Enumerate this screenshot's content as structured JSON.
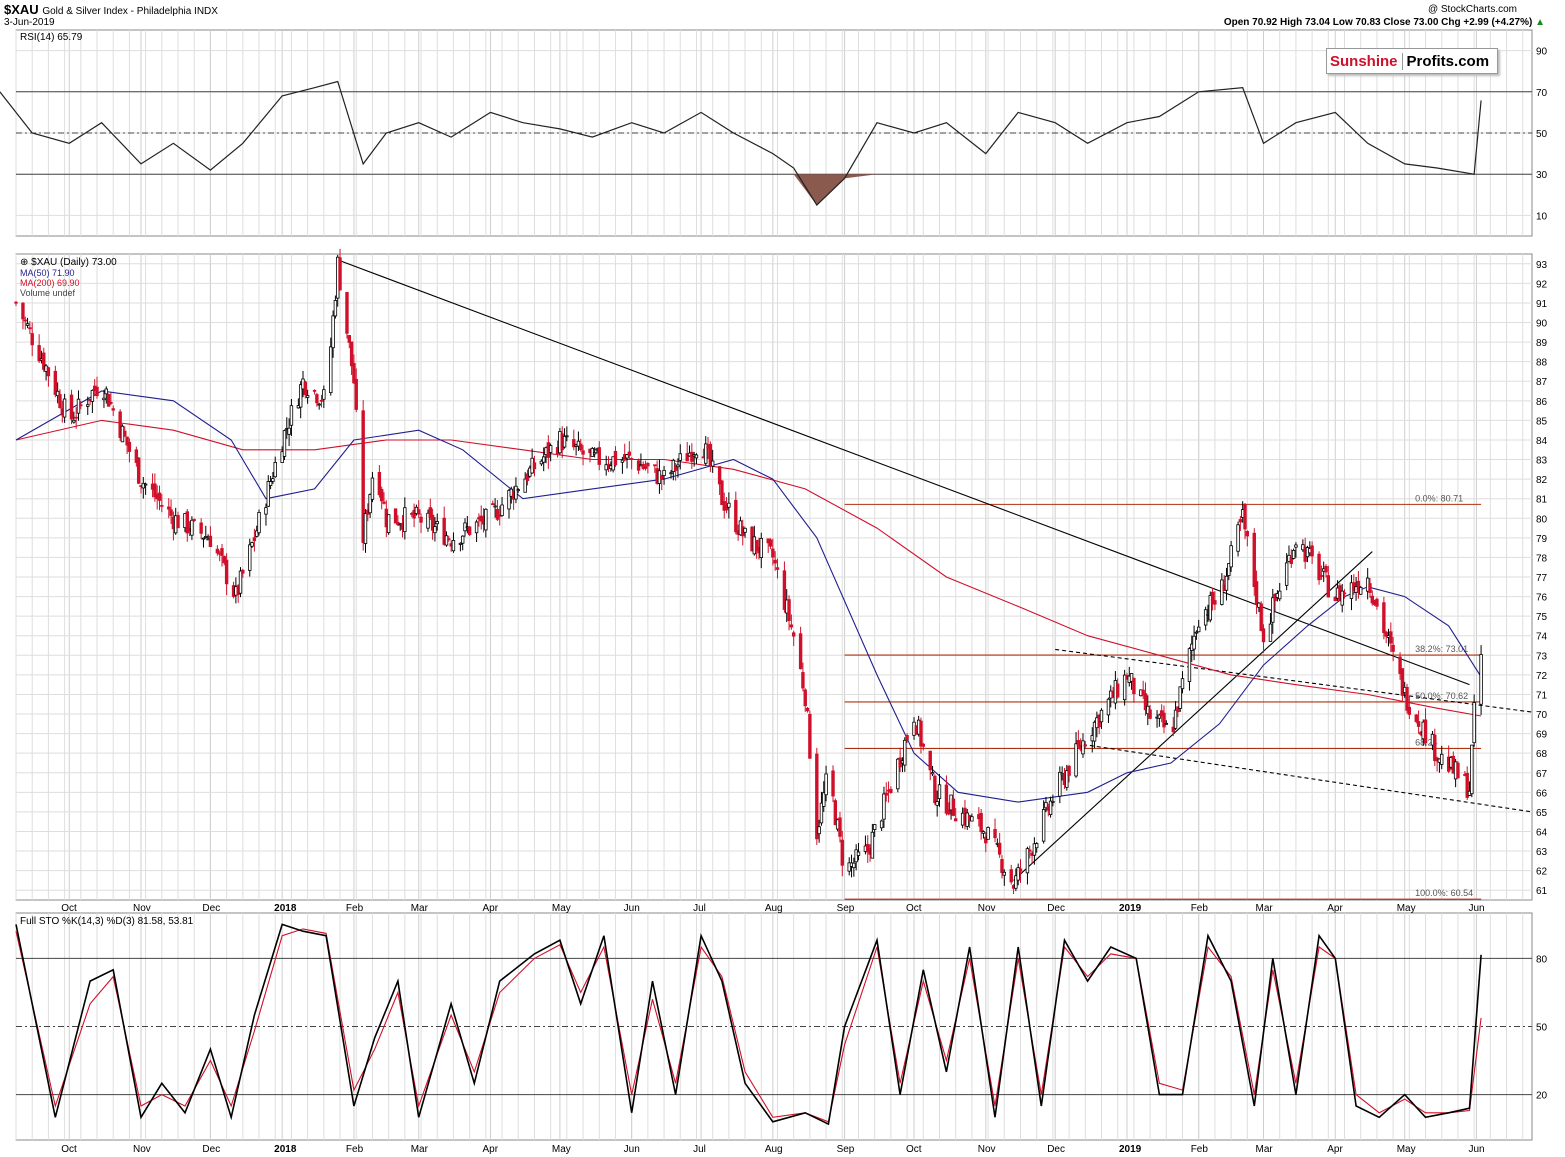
{
  "header": {
    "symbol": "$XAU",
    "name": "Gold & Silver Index - Philadelphia  INDX",
    "date": "3-Jun-2019",
    "quote": "Open 70.92  High 73.04  Low 70.83  Close 73.00  Chg +2.99 (+4.27%)",
    "quote_arrow": "▲",
    "copyright": "@ StockCharts.com"
  },
  "logo": {
    "part1": "Sunshine",
    "part2": "Profits.com"
  },
  "colors": {
    "up": "#000000",
    "down": "#d0102a",
    "ma50": "#1f1f8f",
    "ma200": "#d0102a",
    "fib": "#b03010",
    "rsi_fill": "#8b5a4f",
    "grid": "#dedede",
    "sto_k": "#000000",
    "sto_d": "#d0102a"
  },
  "chart_data": [
    {
      "type": "line",
      "panel": "rsi",
      "legend": "RSI(14) 65.79",
      "yticks": [
        90,
        70,
        50,
        30,
        10
      ],
      "ylim": [
        0,
        100
      ],
      "reference_lines": [
        70,
        50,
        30
      ],
      "x": [
        "2017-09-01",
        "2017-09-15",
        "2017-10-01",
        "2017-10-15",
        "2017-11-01",
        "2017-11-15",
        "2017-12-01",
        "2017-12-15",
        "2018-01-01",
        "2018-01-15",
        "2018-01-25",
        "2018-02-05",
        "2018-02-15",
        "2018-03-01",
        "2018-03-15",
        "2018-04-01",
        "2018-04-15",
        "2018-05-01",
        "2018-05-15",
        "2018-06-01",
        "2018-06-15",
        "2018-07-01",
        "2018-07-15",
        "2018-08-01",
        "2018-08-10",
        "2018-08-20",
        "2018-09-01",
        "2018-09-15",
        "2018-10-01",
        "2018-10-15",
        "2018-11-01",
        "2018-11-15",
        "2018-12-01",
        "2018-12-15",
        "2019-01-01",
        "2019-01-15",
        "2019-02-01",
        "2019-02-20",
        "2019-03-01",
        "2019-03-15",
        "2019-04-01",
        "2019-04-15",
        "2019-05-01",
        "2019-05-15",
        "2019-05-31",
        "2019-06-03"
      ],
      "values": [
        70,
        50,
        45,
        55,
        35,
        45,
        32,
        45,
        68,
        72,
        75,
        35,
        50,
        55,
        48,
        60,
        55,
        52,
        48,
        55,
        50,
        60,
        50,
        40,
        33,
        15,
        28,
        55,
        50,
        55,
        40,
        60,
        55,
        45,
        55,
        58,
        70,
        72,
        45,
        55,
        60,
        45,
        35,
        33,
        30,
        65.79
      ]
    },
    {
      "type": "line",
      "panel": "price",
      "legend": [
        "$XAU (Daily) 73.00",
        "MA(50) 71.90",
        "MA(200) 69.90",
        "Volume undef"
      ],
      "ylim": [
        60.5,
        93.5
      ],
      "yticks": [
        93,
        92,
        91,
        90,
        89,
        88,
        87,
        86,
        85,
        84,
        83,
        82,
        81,
        80,
        79,
        78,
        77,
        76,
        75,
        74,
        73,
        72,
        71,
        70,
        69,
        68,
        67,
        66,
        65,
        64,
        63,
        62,
        61
      ],
      "x_labels": [
        "Oct",
        "Nov",
        "Dec",
        "2018",
        "Feb",
        "Mar",
        "Apr",
        "May",
        "Jun",
        "Jul",
        "Aug",
        "Sep",
        "Oct",
        "Nov",
        "Dec",
        "2019",
        "Feb",
        "Mar",
        "Apr",
        "May",
        "Jun"
      ],
      "x_label_dates": [
        "2017-10-01",
        "2017-11-01",
        "2017-12-01",
        "2018-01-01",
        "2018-02-01",
        "2018-03-01",
        "2018-04-01",
        "2018-05-01",
        "2018-06-01",
        "2018-07-01",
        "2018-08-01",
        "2018-09-01",
        "2018-10-01",
        "2018-11-01",
        "2018-12-01",
        "2019-01-01",
        "2019-02-01",
        "2019-03-01",
        "2019-04-01",
        "2019-05-01",
        "2019-06-01"
      ],
      "x_range": [
        "2017-09-08",
        "2019-06-25"
      ],
      "close_path": {
        "x": [
          "2017-09-08",
          "2017-09-20",
          "2017-10-01",
          "2017-10-15",
          "2017-11-01",
          "2017-11-15",
          "2017-12-01",
          "2017-12-12",
          "2017-12-20",
          "2018-01-01",
          "2018-01-10",
          "2018-01-20",
          "2018-01-25",
          "2018-02-01",
          "2018-02-05",
          "2018-02-10",
          "2018-02-15",
          "2018-03-01",
          "2018-03-15",
          "2018-04-01",
          "2018-04-15",
          "2018-05-01",
          "2018-05-15",
          "2018-06-01",
          "2018-06-15",
          "2018-07-01",
          "2018-07-10",
          "2018-07-20",
          "2018-08-01",
          "2018-08-10",
          "2018-08-15",
          "2018-08-20",
          "2018-08-25",
          "2018-09-01",
          "2018-09-11",
          "2018-09-20",
          "2018-10-01",
          "2018-10-10",
          "2018-10-20",
          "2018-11-01",
          "2018-11-13",
          "2018-11-20",
          "2018-12-01",
          "2018-12-15",
          "2019-01-01",
          "2019-01-10",
          "2019-01-20",
          "2019-02-01",
          "2019-02-10",
          "2019-02-20",
          "2019-03-01",
          "2019-03-15",
          "2019-04-01",
          "2019-04-15",
          "2019-05-01",
          "2019-05-15",
          "2019-05-29",
          "2019-05-31",
          "2019-06-03"
        ],
        "values": [
          91,
          88,
          85,
          87,
          82,
          80,
          79,
          76,
          79,
          84,
          87,
          86,
          93,
          87,
          79,
          83,
          80,
          80,
          79,
          80,
          82,
          84,
          83,
          83,
          82,
          84,
          81,
          79,
          78,
          74,
          71,
          64,
          67,
          62,
          63,
          66,
          70,
          66,
          65,
          64,
          61.3,
          63,
          66,
          69,
          72,
          70,
          69,
          75,
          76,
          80,
          74,
          79,
          76,
          77,
          71,
          68,
          66.2,
          70,
          73.0
        ]
      },
      "ma50": {
        "x": [
          "2017-09-08",
          "2017-10-15",
          "2017-11-15",
          "2017-12-10",
          "2017-12-25",
          "2018-01-15",
          "2018-02-01",
          "2018-03-01",
          "2018-03-20",
          "2018-04-15",
          "2018-05-15",
          "2018-06-15",
          "2018-07-15",
          "2018-08-01",
          "2018-08-20",
          "2018-09-15",
          "2018-10-01",
          "2018-10-20",
          "2018-11-15",
          "2018-12-15",
          "2019-01-01",
          "2019-01-20",
          "2019-02-10",
          "2019-03-01",
          "2019-03-20",
          "2019-04-05",
          "2019-04-15",
          "2019-05-01",
          "2019-05-20",
          "2019-06-03"
        ],
        "values": [
          84,
          86.5,
          86,
          84,
          81,
          81.5,
          84,
          84.5,
          83.5,
          81,
          81.5,
          82,
          83,
          82,
          79,
          72,
          68,
          66,
          65.5,
          66,
          67,
          67.5,
          69.5,
          72.5,
          74.5,
          76,
          76.5,
          76,
          74.5,
          71.9
        ]
      },
      "ma200": {
        "x": [
          "2017-09-08",
          "2017-10-15",
          "2017-11-15",
          "2017-12-15",
          "2018-01-15",
          "2018-02-15",
          "2018-03-15",
          "2018-04-15",
          "2018-05-15",
          "2018-06-15",
          "2018-07-15",
          "2018-08-15",
          "2018-09-15",
          "2018-10-15",
          "2018-11-15",
          "2018-12-15",
          "2019-01-15",
          "2019-02-15",
          "2019-03-15",
          "2019-04-15",
          "2019-05-15",
          "2019-06-03"
        ],
        "values": [
          84,
          85,
          84.5,
          83.5,
          83.5,
          84,
          84,
          83.5,
          83,
          83,
          82.5,
          81.5,
          79.5,
          77,
          75.5,
          74,
          73,
          72,
          71.5,
          71,
          70.3,
          69.9
        ]
      },
      "trendlines": [
        {
          "style": "solid",
          "x": [
            "2018-01-25",
            "2019-05-29"
          ],
          "y": [
            93.2,
            71.5
          ]
        },
        {
          "style": "solid",
          "x": [
            "2018-11-13",
            "2019-04-17"
          ],
          "y": [
            61.5,
            78.3
          ]
        },
        {
          "style": "dashed",
          "x": [
            "2018-12-01",
            "2019-06-25"
          ],
          "y": [
            73.3,
            70.1
          ]
        },
        {
          "style": "dashed",
          "x": [
            "2018-12-10",
            "2019-06-25"
          ],
          "y": [
            68.5,
            65.0
          ]
        }
      ],
      "fib_levels": [
        {
          "label": "0.0%: 80.71",
          "value": 80.71
        },
        {
          "label": "38.2%: 73.01",
          "value": 73.01
        },
        {
          "label": "50.0%: 70.62",
          "value": 70.62
        },
        {
          "label": "68.24",
          "value": 68.24
        },
        {
          "label": "100.0%: 60.54",
          "value": 60.54
        }
      ],
      "fib_range": [
        "2018-09-01",
        "2019-06-03"
      ]
    },
    {
      "type": "line",
      "panel": "stochastic",
      "legend": "Full STO %K(14,3) %D(3) 81.58, 53.81",
      "legend_d_value": "53.81",
      "yticks": [
        80,
        50,
        20
      ],
      "ylim": [
        0,
        100
      ],
      "reference_lines": [
        80,
        50,
        20
      ],
      "x": [
        "2017-09-08",
        "2017-09-25",
        "2017-10-10",
        "2017-10-20",
        "2017-11-01",
        "2017-11-10",
        "2017-11-20",
        "2017-12-01",
        "2017-12-10",
        "2017-12-20",
        "2018-01-01",
        "2018-01-10",
        "2018-01-20",
        "2018-02-01",
        "2018-02-10",
        "2018-02-20",
        "2018-03-01",
        "2018-03-15",
        "2018-03-25",
        "2018-04-05",
        "2018-04-20",
        "2018-05-01",
        "2018-05-10",
        "2018-05-20",
        "2018-06-01",
        "2018-06-10",
        "2018-06-20",
        "2018-07-01",
        "2018-07-10",
        "2018-07-20",
        "2018-08-01",
        "2018-08-15",
        "2018-08-25",
        "2018-09-01",
        "2018-09-15",
        "2018-09-25",
        "2018-10-05",
        "2018-10-15",
        "2018-10-25",
        "2018-11-05",
        "2018-11-15",
        "2018-11-25",
        "2018-12-05",
        "2018-12-15",
        "2018-12-25",
        "2019-01-05",
        "2019-01-15",
        "2019-01-25",
        "2019-02-05",
        "2019-02-15",
        "2019-02-25",
        "2019-03-05",
        "2019-03-15",
        "2019-03-25",
        "2019-04-01",
        "2019-04-10",
        "2019-04-20",
        "2019-05-01",
        "2019-05-10",
        "2019-05-20",
        "2019-05-29",
        "2019-06-03"
      ],
      "k_values": [
        95,
        10,
        70,
        75,
        10,
        25,
        12,
        40,
        10,
        55,
        95,
        92,
        90,
        15,
        45,
        70,
        10,
        60,
        25,
        70,
        82,
        88,
        60,
        90,
        12,
        70,
        20,
        90,
        70,
        25,
        8,
        12,
        7,
        50,
        88,
        20,
        75,
        30,
        85,
        10,
        85,
        15,
        88,
        70,
        85,
        80,
        20,
        20,
        90,
        70,
        15,
        80,
        20,
        90,
        80,
        15,
        10,
        20,
        10,
        12,
        14,
        81.58
      ],
      "d_values": [
        92,
        15,
        60,
        72,
        15,
        20,
        15,
        35,
        15,
        48,
        90,
        93,
        91,
        22,
        40,
        65,
        15,
        55,
        30,
        65,
        80,
        86,
        65,
        85,
        20,
        62,
        25,
        85,
        72,
        30,
        10,
        12,
        8,
        42,
        85,
        25,
        70,
        35,
        80,
        15,
        80,
        20,
        85,
        72,
        82,
        80,
        25,
        22,
        85,
        72,
        20,
        75,
        25,
        85,
        80,
        20,
        12,
        18,
        12,
        12,
        13,
        53.81
      ]
    }
  ]
}
